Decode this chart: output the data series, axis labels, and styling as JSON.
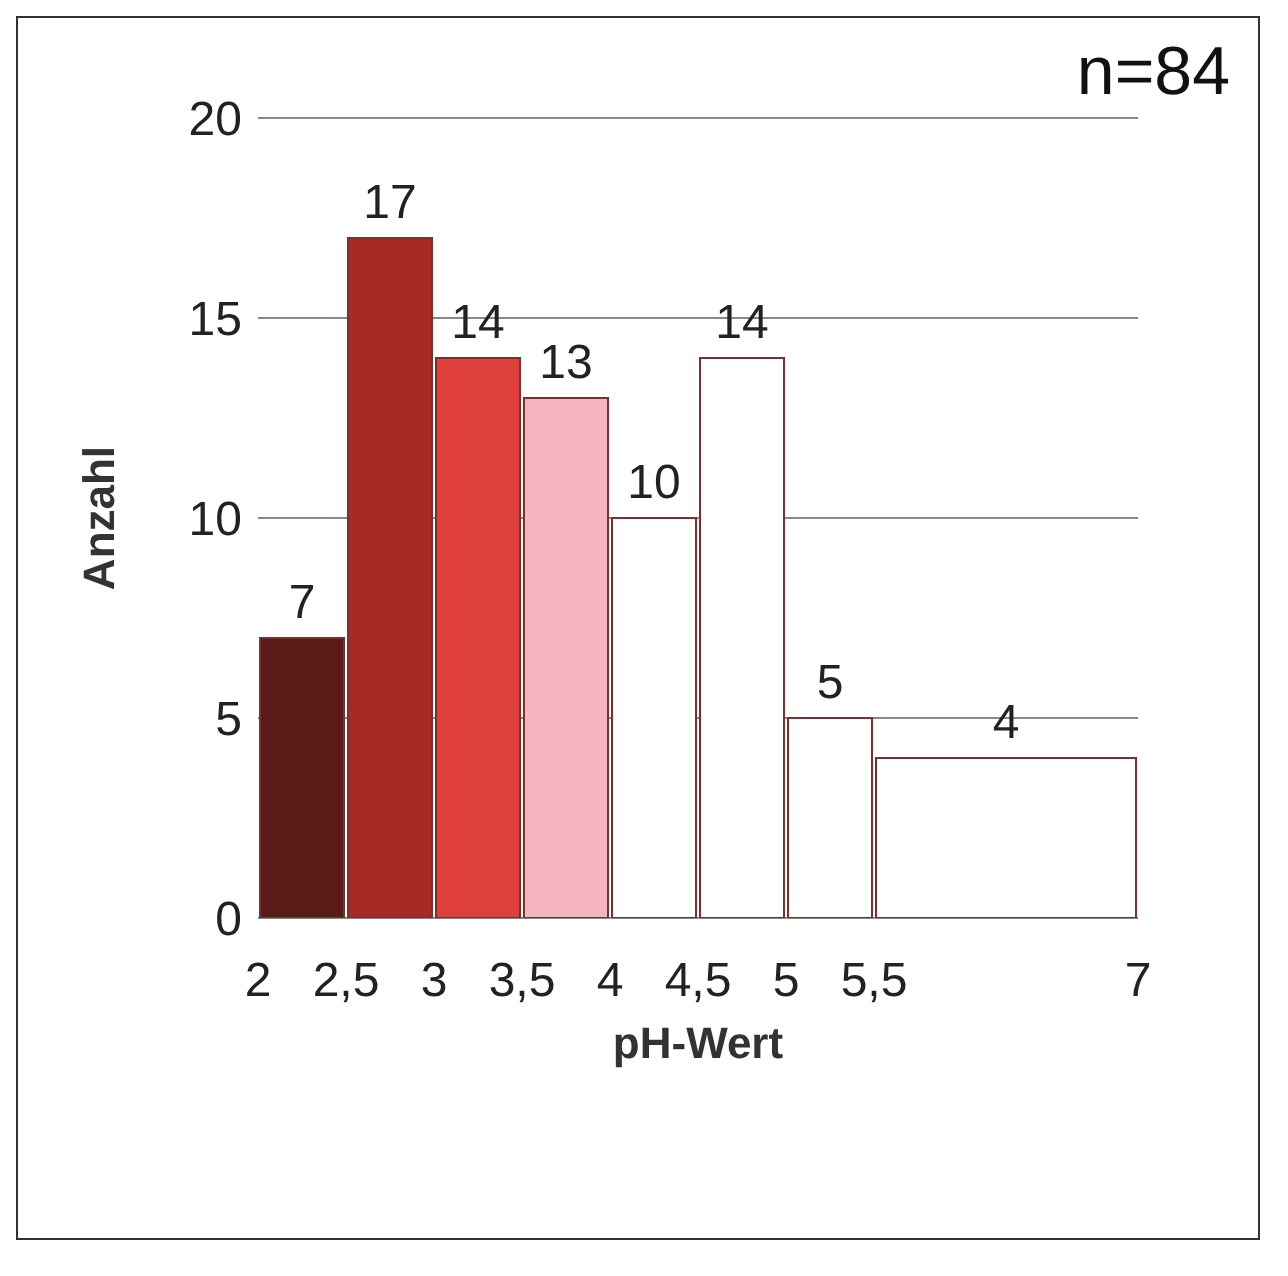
{
  "chart_data": {
    "type": "histogram",
    "xlabel": "pH-Wert",
    "ylabel": "Anzahl",
    "bins": [
      2,
      2.5,
      3,
      3.5,
      4,
      4.5,
      5,
      5.5,
      7
    ],
    "values": [
      7,
      17,
      14,
      13,
      10,
      14,
      5,
      4
    ],
    "colors": [
      "#5a1a18",
      "#a82a26",
      "#e0403c",
      "#f6b4c0",
      "#ffffff",
      "#ffffff",
      "#ffffff",
      "#ffffff"
    ],
    "xlim": [
      2,
      7
    ],
    "xticks": [
      {
        "value": 2,
        "label": "2"
      },
      {
        "value": 2.5,
        "label": "2,5"
      },
      {
        "value": 3,
        "label": "3"
      },
      {
        "value": 3.5,
        "label": "3,5"
      },
      {
        "value": 4,
        "label": "4"
      },
      {
        "value": 4.5,
        "label": "4,5"
      },
      {
        "value": 5,
        "label": "5"
      },
      {
        "value": 5.5,
        "label": "5,5"
      },
      {
        "value": 7,
        "label": "7"
      }
    ],
    "ylim": [
      0,
      20
    ],
    "yticks": [
      0,
      5,
      10,
      15,
      20
    ],
    "grid": "y",
    "data_labels": true,
    "legend": false,
    "annotations": [
      "n=84"
    ]
  }
}
